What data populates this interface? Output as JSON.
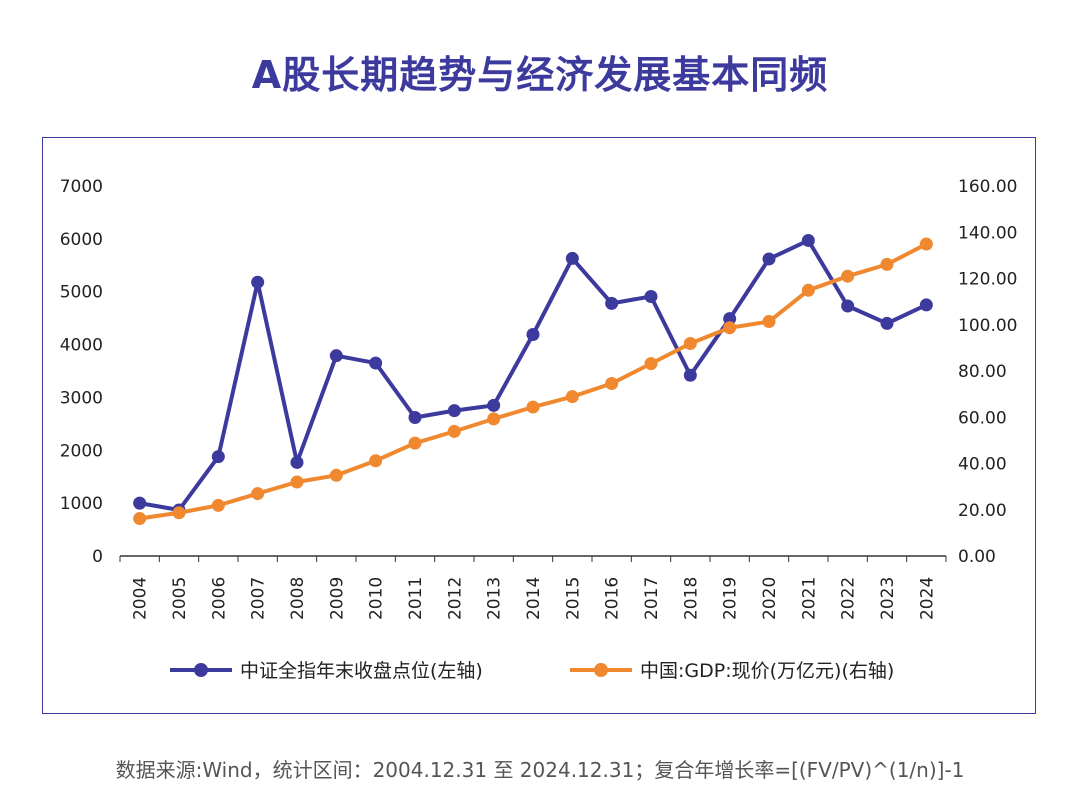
{
  "title": "A股长期趋势与经济发展基本同频",
  "source_note": "数据来源:Wind，统计区间：2004.12.31 至 2024.12.31；复合年增长率=[(FV/PV)^(1/n)]-1",
  "colors": {
    "title": "#3d3a9e",
    "series_index": "#3d3a9e",
    "series_gdp": "#f0882f",
    "axis": "#333333",
    "text": "#222222"
  },
  "chart_data": {
    "type": "line",
    "title": "A股长期趋势与经济发展基本同频",
    "categories": [
      "2004",
      "2005",
      "2006",
      "2007",
      "2008",
      "2009",
      "2010",
      "2011",
      "2012",
      "2013",
      "2014",
      "2015",
      "2016",
      "2017",
      "2018",
      "2019",
      "2020",
      "2021",
      "2022",
      "2023",
      "2024"
    ],
    "left_axis": {
      "range": [
        0,
        7000
      ],
      "ticks": [
        "0",
        "1000",
        "2000",
        "3000",
        "4000",
        "5000",
        "6000",
        "7000"
      ]
    },
    "right_axis": {
      "range": [
        0,
        160
      ],
      "ticks": [
        "0.00",
        "20.00",
        "40.00",
        "60.00",
        "80.00",
        "100.00",
        "120.00",
        "140.00",
        "160.00"
      ]
    },
    "grid": false,
    "legend_position": "bottom",
    "series": [
      {
        "name": "中证全指年末收盘点位(左轴)",
        "axis": "left",
        "color": "#3d3a9e",
        "values": [
          1000,
          870,
          1880,
          5180,
          1770,
          3790,
          3650,
          2620,
          2750,
          2850,
          4190,
          5630,
          4780,
          4910,
          3420,
          4490,
          5620,
          5970,
          4730,
          4400,
          4750
        ]
      },
      {
        "name": "中国:GDP:现价(万亿元)(右轴)",
        "axis": "right",
        "color": "#f0882f",
        "values": [
          16.2,
          18.7,
          21.9,
          27.0,
          32.0,
          34.9,
          41.2,
          48.8,
          53.9,
          59.3,
          64.4,
          68.9,
          74.6,
          83.2,
          91.9,
          98.7,
          101.4,
          114.9,
          121.0,
          126.1,
          134.9
        ]
      }
    ]
  }
}
